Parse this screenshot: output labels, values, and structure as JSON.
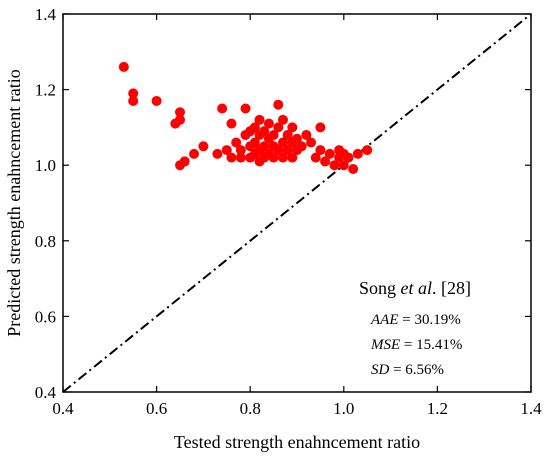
{
  "chart_data": {
    "type": "scatter",
    "xlabel": "Tested strength enahncement ratio",
    "ylabel": "Predicted strength enahncement ratio",
    "xlim": [
      0.4,
      1.4
    ],
    "ylim": [
      0.4,
      1.4
    ],
    "x_ticks": [
      "0.4",
      "0.6",
      "0.8",
      "1.0",
      "1.2",
      "1.4"
    ],
    "y_ticks": [
      "0.4",
      "0.6",
      "0.8",
      "1.0",
      "1.2",
      "1.4"
    ],
    "grid": false,
    "point_color": "#ff0000",
    "reference_line": {
      "type": "y=x",
      "style": "dash-dot",
      "color": "#000000"
    },
    "annotation": {
      "title_pre": "Song ",
      "title_italic": "et al",
      "title_post": ". [28]",
      "stats": [
        {
          "name": "AAE",
          "value": " = 30.19%"
        },
        {
          "name": "MSE",
          "value": " = 15.41%"
        },
        {
          "name": "SD",
          "value": " = 6.56%"
        }
      ]
    },
    "points": [
      [
        0.53,
        1.26
      ],
      [
        0.55,
        1.19
      ],
      [
        0.55,
        1.17
      ],
      [
        0.6,
        1.17
      ],
      [
        0.64,
        1.11
      ],
      [
        0.65,
        1.14
      ],
      [
        0.65,
        1.12
      ],
      [
        0.65,
        1.0
      ],
      [
        0.66,
        1.01
      ],
      [
        0.68,
        1.03
      ],
      [
        0.7,
        1.05
      ],
      [
        0.73,
        1.03
      ],
      [
        0.74,
        1.15
      ],
      [
        0.75,
        1.04
      ],
      [
        0.76,
        1.02
      ],
      [
        0.76,
        1.11
      ],
      [
        0.77,
        1.06
      ],
      [
        0.78,
        1.02
      ],
      [
        0.78,
        1.04
      ],
      [
        0.79,
        1.08
      ],
      [
        0.79,
        1.15
      ],
      [
        0.8,
        1.02
      ],
      [
        0.8,
        1.05
      ],
      [
        0.8,
        1.09
      ],
      [
        0.81,
        1.03
      ],
      [
        0.81,
        1.06
      ],
      [
        0.81,
        1.1
      ],
      [
        0.82,
        1.01
      ],
      [
        0.82,
        1.04
      ],
      [
        0.82,
        1.08
      ],
      [
        0.82,
        1.12
      ],
      [
        0.83,
        1.02
      ],
      [
        0.83,
        1.05
      ],
      [
        0.83,
        1.09
      ],
      [
        0.84,
        1.03
      ],
      [
        0.84,
        1.07
      ],
      [
        0.84,
        1.11
      ],
      [
        0.85,
        1.02
      ],
      [
        0.85,
        1.05
      ],
      [
        0.85,
        1.08
      ],
      [
        0.86,
        1.04
      ],
      [
        0.86,
        1.1
      ],
      [
        0.86,
        1.16
      ],
      [
        0.87,
        1.02
      ],
      [
        0.87,
        1.06
      ],
      [
        0.87,
        1.12
      ],
      [
        0.88,
        1.04
      ],
      [
        0.88,
        1.08
      ],
      [
        0.89,
        1.02
      ],
      [
        0.89,
        1.06
      ],
      [
        0.89,
        1.1
      ],
      [
        0.9,
        1.04
      ],
      [
        0.9,
        1.07
      ],
      [
        0.91,
        1.05
      ],
      [
        0.92,
        1.08
      ],
      [
        0.93,
        1.06
      ],
      [
        0.94,
        1.02
      ],
      [
        0.95,
        1.1
      ],
      [
        0.95,
        1.04
      ],
      [
        0.96,
        1.01
      ],
      [
        0.97,
        1.03
      ],
      [
        0.98,
        1.0
      ],
      [
        0.99,
        1.02
      ],
      [
        0.99,
        1.04
      ],
      [
        1.0,
        1.0
      ],
      [
        1.0,
        1.03
      ],
      [
        1.01,
        1.02
      ],
      [
        1.02,
        0.99
      ],
      [
        1.03,
        1.03
      ],
      [
        1.05,
        1.04
      ]
    ]
  }
}
